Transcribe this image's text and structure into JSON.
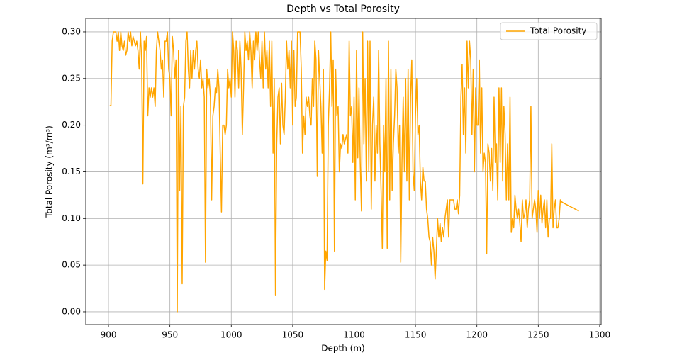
{
  "chart_data": {
    "type": "line",
    "title": "Depth vs Total Porosity",
    "x_label": "Depth (m)",
    "y_label": "Total Porosity (m³/m³)",
    "x": [
      901,
      902,
      903,
      904,
      905,
      906,
      907,
      908,
      909,
      910,
      911,
      912,
      913,
      914,
      915,
      916,
      917,
      918,
      919,
      920,
      921,
      922,
      923,
      924,
      925,
      926,
      927,
      928,
      929,
      930,
      931,
      932,
      933,
      934,
      935,
      936,
      937,
      938,
      939,
      940,
      941,
      942,
      943,
      944,
      945,
      946,
      947,
      948,
      949,
      950,
      951,
      952,
      953,
      954,
      955,
      956,
      957,
      958,
      959,
      960,
      961,
      962,
      963,
      964,
      965,
      966,
      967,
      968,
      969,
      970,
      971,
      972,
      973,
      974,
      975,
      976,
      977,
      978,
      979,
      980,
      981,
      982,
      983,
      984,
      985,
      986,
      987,
      988,
      989,
      990,
      991,
      992,
      993,
      994,
      995,
      996,
      997,
      998,
      999,
      1000,
      1001,
      1002,
      1003,
      1004,
      1005,
      1006,
      1007,
      1008,
      1009,
      1010,
      1011,
      1012,
      1013,
      1014,
      1015,
      1016,
      1017,
      1018,
      1019,
      1020,
      1021,
      1022,
      1023,
      1024,
      1025,
      1026,
      1027,
      1028,
      1029,
      1030,
      1031,
      1032,
      1033,
      1034,
      1035,
      1036,
      1037,
      1038,
      1039,
      1040,
      1041,
      1042,
      1043,
      1044,
      1045,
      1046,
      1047,
      1048,
      1049,
      1050,
      1051,
      1052,
      1053,
      1054,
      1055,
      1056,
      1057,
      1058,
      1059,
      1060,
      1061,
      1062,
      1063,
      1064,
      1065,
      1066,
      1067,
      1068,
      1069,
      1070,
      1071,
      1072,
      1073,
      1074,
      1075,
      1076,
      1077,
      1078,
      1079,
      1080,
      1081,
      1082,
      1083,
      1084,
      1085,
      1086,
      1087,
      1088,
      1089,
      1090,
      1091,
      1092,
      1093,
      1094,
      1095,
      1096,
      1097,
      1098,
      1099,
      1100,
      1101,
      1102,
      1103,
      1104,
      1105,
      1106,
      1107,
      1108,
      1109,
      1110,
      1111,
      1112,
      1113,
      1114,
      1115,
      1116,
      1117,
      1118,
      1119,
      1120,
      1121,
      1122,
      1123,
      1124,
      1125,
      1126,
      1127,
      1128,
      1129,
      1130,
      1131,
      1132,
      1133,
      1134,
      1135,
      1136,
      1137,
      1138,
      1139,
      1140,
      1141,
      1142,
      1143,
      1144,
      1145,
      1146,
      1147,
      1148,
      1149,
      1150,
      1151,
      1152,
      1153,
      1154,
      1155,
      1156,
      1157,
      1158,
      1159,
      1160,
      1161,
      1162,
      1163,
      1164,
      1165,
      1166,
      1167,
      1168,
      1169,
      1170,
      1171,
      1172,
      1173,
      1174,
      1175,
      1176,
      1177,
      1178,
      1179,
      1180,
      1181,
      1182,
      1183,
      1184,
      1185,
      1186,
      1187,
      1188,
      1189,
      1190,
      1191,
      1192,
      1193,
      1194,
      1195,
      1196,
      1197,
      1198,
      1199,
      1200,
      1201,
      1202,
      1203,
      1204,
      1205,
      1206,
      1207,
      1208,
      1209,
      1210,
      1211,
      1212,
      1213,
      1214,
      1215,
      1216,
      1217,
      1218,
      1219,
      1220,
      1221,
      1222,
      1223,
      1224,
      1225,
      1226,
      1227,
      1228,
      1229,
      1230,
      1231,
      1232,
      1233,
      1234,
      1235,
      1236,
      1237,
      1238,
      1239,
      1240,
      1241,
      1242,
      1243,
      1244,
      1245,
      1246,
      1247,
      1248,
      1249,
      1250,
      1251,
      1252,
      1253,
      1254,
      1255,
      1256,
      1257,
      1258,
      1259,
      1260,
      1261,
      1262,
      1263,
      1264,
      1265,
      1266,
      1267,
      1268,
      1269,
      1270,
      1283
    ],
    "series": [
      {
        "name": "Total Porosity",
        "color": "#ffa500",
        "values": [
          0.221,
          0.221,
          0.29,
          0.3,
          0.3,
          0.3,
          0.29,
          0.3,
          0.28,
          0.3,
          0.285,
          0.28,
          0.29,
          0.275,
          0.28,
          0.3,
          0.29,
          0.3,
          0.285,
          0.295,
          0.29,
          0.285,
          0.29,
          0.28,
          0.26,
          0.3,
          0.27,
          0.137,
          0.29,
          0.28,
          0.295,
          0.21,
          0.24,
          0.23,
          0.24,
          0.23,
          0.24,
          0.22,
          0.28,
          0.3,
          0.29,
          0.28,
          0.26,
          0.27,
          0.23,
          0.29,
          0.29,
          0.3,
          0.26,
          0.25,
          0.21,
          0.295,
          0.28,
          0.25,
          0.27,
          0.0,
          0.28,
          0.13,
          0.22,
          0.03,
          0.22,
          0.23,
          0.29,
          0.3,
          0.26,
          0.24,
          0.28,
          0.25,
          0.28,
          0.26,
          0.28,
          0.29,
          0.26,
          0.25,
          0.27,
          0.24,
          0.25,
          0.23,
          0.053,
          0.26,
          0.24,
          0.25,
          0.23,
          0.12,
          0.21,
          0.22,
          0.24,
          0.235,
          0.26,
          0.24,
          0.17,
          0.107,
          0.2,
          0.2,
          0.19,
          0.2,
          0.26,
          0.24,
          0.25,
          0.23,
          0.3,
          0.28,
          0.23,
          0.29,
          0.28,
          0.24,
          0.29,
          0.26,
          0.19,
          0.24,
          0.3,
          0.28,
          0.29,
          0.27,
          0.3,
          0.28,
          0.24,
          0.29,
          0.27,
          0.3,
          0.28,
          0.3,
          0.27,
          0.25,
          0.29,
          0.24,
          0.3,
          0.26,
          0.28,
          0.24,
          0.29,
          0.22,
          0.29,
          0.17,
          0.25,
          0.018,
          0.18,
          0.23,
          0.24,
          0.18,
          0.245,
          0.2,
          0.19,
          0.23,
          0.29,
          0.26,
          0.28,
          0.24,
          0.29,
          0.2,
          0.28,
          0.22,
          0.23,
          0.3,
          0.3,
          0.3,
          0.26,
          0.17,
          0.21,
          0.19,
          0.23,
          0.22,
          0.23,
          0.21,
          0.2,
          0.25,
          0.22,
          0.29,
          0.27,
          0.145,
          0.28,
          0.25,
          0.22,
          0.17,
          0.26,
          0.024,
          0.065,
          0.055,
          0.2,
          0.24,
          0.3,
          0.22,
          0.27,
          0.065,
          0.26,
          0.21,
          0.22,
          0.15,
          0.18,
          0.175,
          0.19,
          0.18,
          0.185,
          0.19,
          0.17,
          0.29,
          0.21,
          0.22,
          0.16,
          0.23,
          0.12,
          0.28,
          0.165,
          0.24,
          0.16,
          0.108,
          0.3,
          0.18,
          0.25,
          0.14,
          0.29,
          0.15,
          0.29,
          0.11,
          0.2,
          0.23,
          0.14,
          0.2,
          0.17,
          0.28,
          0.18,
          0.13,
          0.068,
          0.2,
          0.15,
          0.25,
          0.068,
          0.29,
          0.12,
          0.26,
          0.13,
          0.18,
          0.21,
          0.26,
          0.24,
          0.17,
          0.2,
          0.053,
          0.16,
          0.23,
          0.15,
          0.25,
          0.14,
          0.26,
          0.12,
          0.23,
          0.27,
          0.15,
          0.13,
          0.21,
          0.25,
          0.19,
          0.2,
          0.14,
          0.12,
          0.155,
          0.14,
          0.14,
          0.11,
          0.1,
          0.08,
          0.075,
          0.05,
          0.08,
          0.065,
          0.035,
          0.065,
          0.1,
          0.08,
          0.095,
          0.075,
          0.09,
          0.08,
          0.1,
          0.11,
          0.12,
          0.08,
          0.12,
          0.12,
          0.12,
          0.12,
          0.11,
          0.11,
          0.12,
          0.105,
          0.125,
          0.23,
          0.265,
          0.19,
          0.24,
          0.17,
          0.29,
          0.24,
          0.29,
          0.27,
          0.19,
          0.26,
          0.15,
          0.24,
          0.2,
          0.2,
          0.27,
          0.17,
          0.24,
          0.15,
          0.17,
          0.16,
          0.062,
          0.18,
          0.17,
          0.14,
          0.175,
          0.13,
          0.23,
          0.16,
          0.18,
          0.12,
          0.24,
          0.16,
          0.24,
          0.14,
          0.22,
          0.19,
          0.12,
          0.18,
          0.12,
          0.23,
          0.085,
          0.1,
          0.09,
          0.125,
          0.11,
          0.1,
          0.11,
          0.095,
          0.075,
          0.12,
          0.1,
          0.105,
          0.12,
          0.09,
          0.11,
          0.12,
          0.22,
          0.1,
          0.11,
          0.12,
          0.11,
          0.085,
          0.13,
          0.1,
          0.125,
          0.095,
          0.11,
          0.12,
          0.09,
          0.12,
          0.08,
          0.1,
          0.1,
          0.18,
          0.09,
          0.11,
          0.12,
          0.09,
          0.09,
          0.1,
          0.12,
          0.118,
          0.117,
          0.108
        ]
      }
    ],
    "xlim": [
      881.5,
      1301.2
    ],
    "ylim": [
      -0.0137,
      0.3144
    ],
    "xticks": [
      900,
      950,
      1000,
      1050,
      1100,
      1150,
      1200,
      1250,
      1300
    ],
    "yticks": [
      {
        "value": 0,
        "label": "0.00"
      },
      0.05,
      {
        "value": 0.1,
        "label": "0.10"
      },
      0.15,
      {
        "value": 0.2,
        "label": "0.20"
      },
      0.25,
      {
        "value": 0.3,
        "label": "0.30"
      }
    ],
    "grid": true,
    "legend": "upper right"
  }
}
